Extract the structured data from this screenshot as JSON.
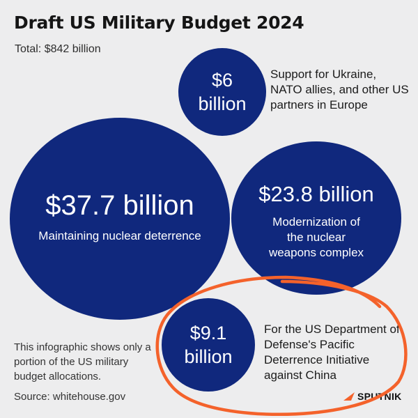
{
  "chart_data": {
    "type": "bubble",
    "title": "Draft US Military Budget 2024",
    "subtitle": "Total: $842 billion",
    "unit": "billion USD",
    "items": [
      {
        "value": 6,
        "amount": "$6",
        "unit_word": "billion",
        "label": "Support for Ukraine, NATO allies, and other US partners in Europe"
      },
      {
        "value": 37.7,
        "amount": "$37.7 billion",
        "label": "Maintaining nuclear deterrence"
      },
      {
        "value": 23.8,
        "amount": "$23.8 billion",
        "label": "Modernization of the nuclear weapons complex"
      },
      {
        "value": 9.1,
        "amount": "$9.1",
        "unit_word": "billion",
        "label": "For the US Department of Defense's Pacific Deterrence Initiative against China"
      }
    ]
  },
  "footer": {
    "note": "This infographic shows only a portion of the US military budget allocations.",
    "source": "Source: whitehouse.gov",
    "brand": "SPUTNIK"
  },
  "colors": {
    "bubble": "#10287d",
    "background": "#ededee",
    "highlight": "#f4622b"
  }
}
